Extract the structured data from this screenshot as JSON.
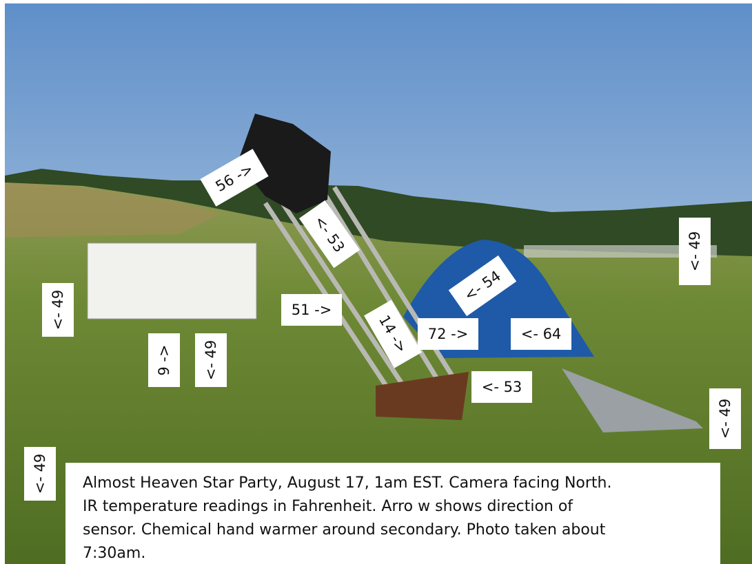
{
  "labels": [
    "56 ->",
    "<- 53",
    "51 ->",
    "14 ->",
    "<- 54",
    "72 ->",
    "<- 64",
    "<- 53",
    "<- 49",
    "<- 49",
    "9 ->",
    "<- 49",
    "<- 49",
    "<- 49"
  ],
  "caption": [
    "Almost Heaven Star Party, August 17, 1am EST.  Camera facing North.",
    "IR temperature readings in Fahrenheit.  Arro  w shows direction of",
    "sensor.  Chemical hand warmer around secondary.   Photo taken about",
    "7:30am."
  ]
}
